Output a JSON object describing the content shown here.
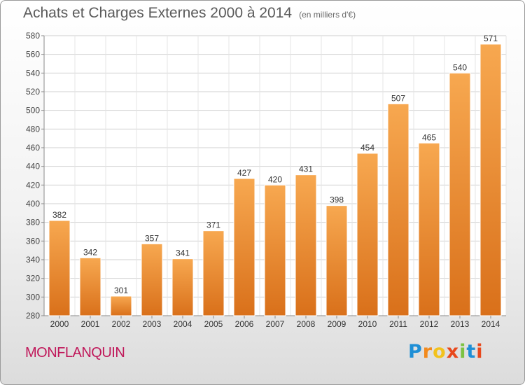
{
  "header": {
    "title": "Achats et Charges Externes 2000 à 2014",
    "subtitle": "(en milliers d'€)"
  },
  "footer": {
    "city": "MONFLANQUIN",
    "logo_text": "Proxiti"
  },
  "chart_data": {
    "type": "bar",
    "title": "Achats et Charges Externes 2000 à 2014",
    "subtitle": "(en milliers d'€)",
    "categories": [
      "2000",
      "2001",
      "2002",
      "2003",
      "2004",
      "2005",
      "2006",
      "2007",
      "2008",
      "2009",
      "2010",
      "2011",
      "2012",
      "2013",
      "2014"
    ],
    "values": [
      382,
      342,
      301,
      357,
      341,
      371,
      427,
      420,
      431,
      398,
      454,
      507,
      465,
      540,
      571
    ],
    "xlabel": "",
    "ylabel": "",
    "ylim": [
      280,
      580
    ],
    "yticks": [
      280,
      300,
      320,
      340,
      360,
      380,
      400,
      420,
      440,
      460,
      480,
      500,
      520,
      540,
      560,
      580
    ],
    "grid": true,
    "bar_color_light": "#f7a850",
    "bar_color_dark": "#d9701a"
  }
}
